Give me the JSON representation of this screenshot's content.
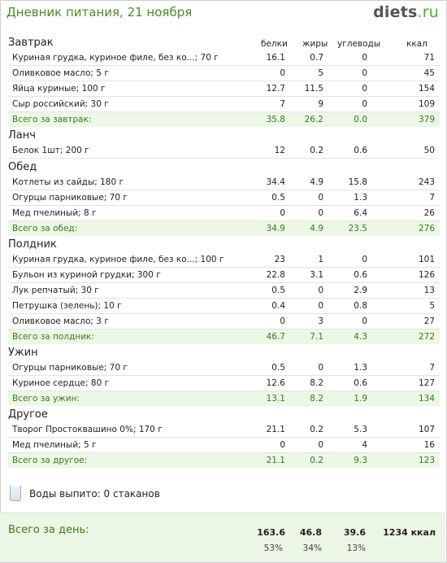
{
  "header": {
    "title": "Дневник питания, 21 ноября",
    "logo_main": "diets",
    "logo_suffix": ".ru"
  },
  "columns": {
    "protein": "белки",
    "fat": "жиры",
    "carbs": "углеводы",
    "kcal": "ккал"
  },
  "meals": [
    {
      "title": "Завтрак",
      "items": [
        {
          "name": "Куриная грудка, куриное филе, без ко...; 70 г",
          "p": "16.1",
          "f": "0.7",
          "c": "0",
          "k": "71"
        },
        {
          "name": "Оливковое масло; 5 г",
          "p": "0",
          "f": "5",
          "c": "0",
          "k": "45"
        },
        {
          "name": "Яйца куриные; 100 г",
          "p": "12.7",
          "f": "11.5",
          "c": "0",
          "k": "154"
        },
        {
          "name": "Сыр российский; 30 г",
          "p": "7",
          "f": "9",
          "c": "0",
          "k": "109"
        }
      ],
      "total": {
        "label": "Всего за завтрак:",
        "p": "35.8",
        "f": "26.2",
        "c": "0.0",
        "k": "379"
      }
    },
    {
      "title": "Ланч",
      "items": [
        {
          "name": "Белок 1шт; 200 г",
          "p": "12",
          "f": "0.2",
          "c": "0.6",
          "k": "50"
        }
      ],
      "total": null
    },
    {
      "title": "Обед",
      "items": [
        {
          "name": "Котлеты из сайды; 180 г",
          "p": "34.4",
          "f": "4.9",
          "c": "15.8",
          "k": "243"
        },
        {
          "name": "Огурцы парниковые; 70 г",
          "p": "0.5",
          "f": "0",
          "c": "1.3",
          "k": "7"
        },
        {
          "name": "Мед пчелиный; 8 г",
          "p": "0",
          "f": "0",
          "c": "6.4",
          "k": "26"
        }
      ],
      "total": {
        "label": "Всего за обед:",
        "p": "34.9",
        "f": "4.9",
        "c": "23.5",
        "k": "276"
      }
    },
    {
      "title": "Полдник",
      "items": [
        {
          "name": "Куриная грудка, куриное филе, без ко...; 100 г",
          "p": "23",
          "f": "1",
          "c": "0",
          "k": "101"
        },
        {
          "name": "Бульон из куриной грудки; 300 г",
          "p": "22.8",
          "f": "3.1",
          "c": "0.6",
          "k": "126"
        },
        {
          "name": "Лук репчатый; 30 г",
          "p": "0.5",
          "f": "0",
          "c": "2.9",
          "k": "13"
        },
        {
          "name": "Петрушка (зелень); 10 г",
          "p": "0.4",
          "f": "0",
          "c": "0.8",
          "k": "5"
        },
        {
          "name": "Оливковое масло; 3 г",
          "p": "0",
          "f": "3",
          "c": "0",
          "k": "27"
        }
      ],
      "total": {
        "label": "Всего за полдник:",
        "p": "46.7",
        "f": "7.1",
        "c": "4.3",
        "k": "272"
      }
    },
    {
      "title": "Ужин",
      "items": [
        {
          "name": "Огурцы парниковые; 70 г",
          "p": "0.5",
          "f": "0",
          "c": "1.3",
          "k": "7"
        },
        {
          "name": "Куриное сердце; 80 г",
          "p": "12.6",
          "f": "8.2",
          "c": "0.6",
          "k": "127"
        }
      ],
      "total": {
        "label": "Всего за ужин:",
        "p": "13.1",
        "f": "8.2",
        "c": "1.9",
        "k": "134"
      }
    },
    {
      "title": "Другое",
      "items": [
        {
          "name": "Творог Простоквашино 0%; 170 г",
          "p": "21.1",
          "f": "0.2",
          "c": "5.3",
          "k": "107"
        },
        {
          "name": "Мед пчелиный; 5 г",
          "p": "0",
          "f": "0",
          "c": "4",
          "k": "16"
        }
      ],
      "total": {
        "label": "Всего за другое:",
        "p": "21.1",
        "f": "0.2",
        "c": "9.3",
        "k": "123"
      }
    }
  ],
  "water": {
    "icon": "glass-icon",
    "text": "Воды выпито: 0 стаканов"
  },
  "day_total": {
    "label": "Всего за день:",
    "protein": "163.6",
    "fat": "46.8",
    "carbs": "39.6",
    "kcal": "1234 ккал",
    "protein_pct": "53%",
    "fat_pct": "34%",
    "carbs_pct": "13%"
  }
}
